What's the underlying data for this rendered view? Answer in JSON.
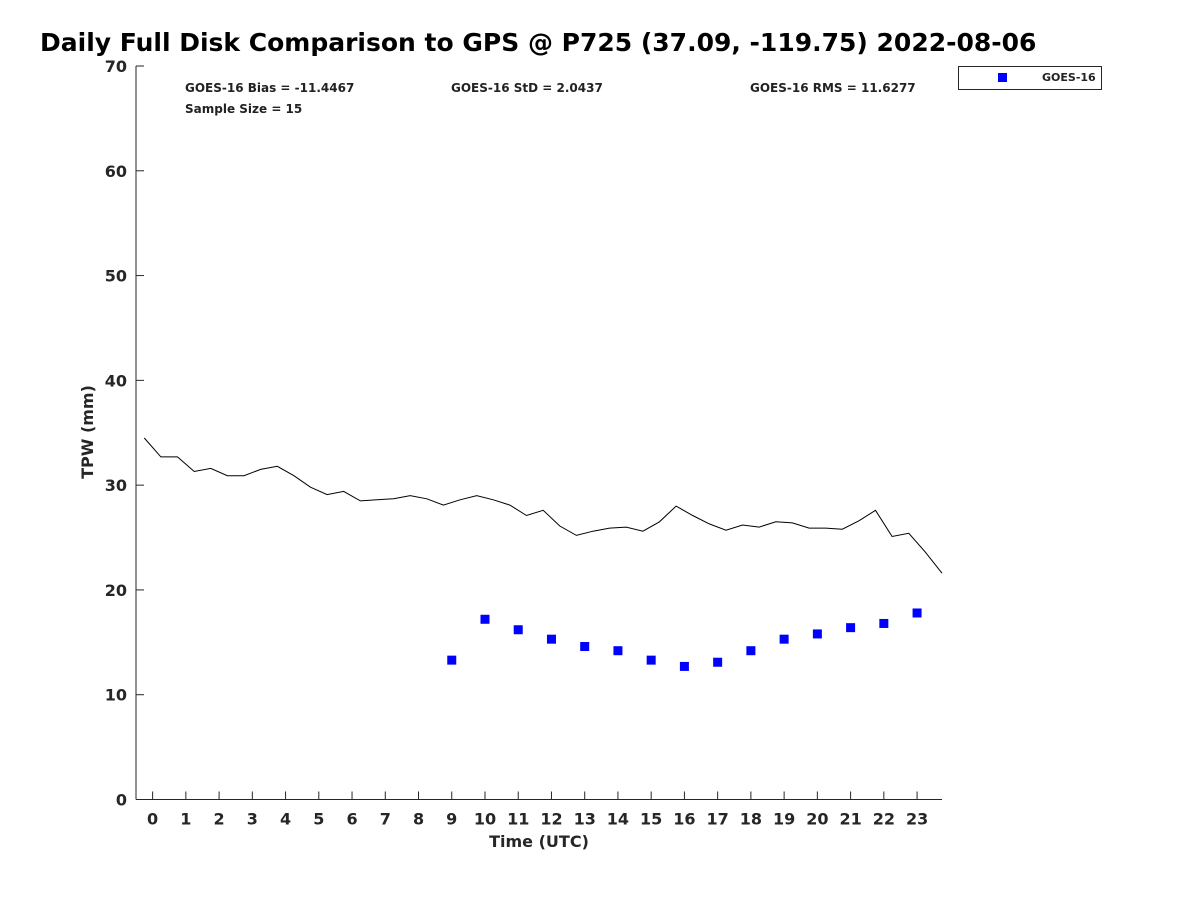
{
  "chart_data": {
    "type": "scatter",
    "title": "Daily Full Disk Comparison to GPS @ P725 (37.09, -119.75) 2022-08-06",
    "xlabel": "Time (UTC)",
    "ylabel": "TPW (mm)",
    "xlim": [
      -0.5,
      23.75
    ],
    "ylim": [
      0,
      70
    ],
    "x_ticks": [
      "0",
      "1",
      "2",
      "3",
      "4",
      "5",
      "6",
      "7",
      "8",
      "9",
      "10",
      "11",
      "12",
      "13",
      "14",
      "15",
      "16",
      "17",
      "18",
      "19",
      "20",
      "21",
      "22",
      "23"
    ],
    "y_ticks": [
      "0",
      "10",
      "20",
      "30",
      "40",
      "50",
      "60",
      "70"
    ],
    "grid": false,
    "legend_position": "top-right",
    "stats": {
      "bias": "GOES-16 Bias = -11.4467",
      "std": "GOES-16 StD = 2.0437",
      "rms": "GOES-16 RMS = 11.6277",
      "sample": "Sample Size = 15"
    },
    "series": [
      {
        "name": "GOES-16",
        "kind": "scatter",
        "marker": "square",
        "color": "#0000ff",
        "x": [
          9,
          10,
          11,
          12,
          13,
          14,
          15,
          16,
          17,
          18,
          19,
          20,
          21,
          22,
          23
        ],
        "y": [
          13.3,
          17.2,
          16.2,
          15.3,
          14.6,
          14.2,
          13.3,
          12.7,
          13.1,
          14.2,
          15.3,
          15.8,
          16.4,
          16.8,
          17.8
        ]
      },
      {
        "kind": "line",
        "color": "#000000",
        "x": [
          -0.25,
          0.25,
          0.75,
          1.25,
          1.75,
          2.25,
          2.75,
          3.25,
          3.75,
          4.25,
          4.75,
          5.25,
          5.75,
          6.25,
          6.75,
          7.25,
          7.75,
          8.25,
          8.75,
          9.25,
          9.75,
          10.25,
          10.75,
          11.25,
          11.75,
          12.25,
          12.75,
          13.25,
          13.75,
          14.25,
          14.75,
          15.25,
          15.75,
          16.25,
          16.75,
          17.25,
          17.75,
          18.25,
          18.75,
          19.25,
          19.75,
          20.25,
          20.75,
          21.25,
          21.75,
          22.25,
          22.75,
          23.25,
          23.75
        ],
        "y": [
          34.5,
          32.7,
          32.7,
          31.3,
          31.6,
          30.9,
          30.9,
          31.5,
          31.8,
          30.9,
          29.8,
          29.1,
          29.4,
          28.5,
          28.6,
          28.7,
          29.0,
          28.7,
          28.1,
          28.6,
          29.0,
          28.6,
          28.1,
          27.1,
          27.6,
          26.1,
          25.2,
          25.6,
          25.9,
          26.0,
          25.6,
          26.5,
          28.0,
          27.1,
          26.3,
          25.7,
          26.2,
          26.0,
          26.5,
          26.4,
          25.9,
          25.9,
          25.8,
          26.6,
          27.6,
          25.1,
          25.4,
          23.6,
          21.6
        ]
      }
    ]
  }
}
